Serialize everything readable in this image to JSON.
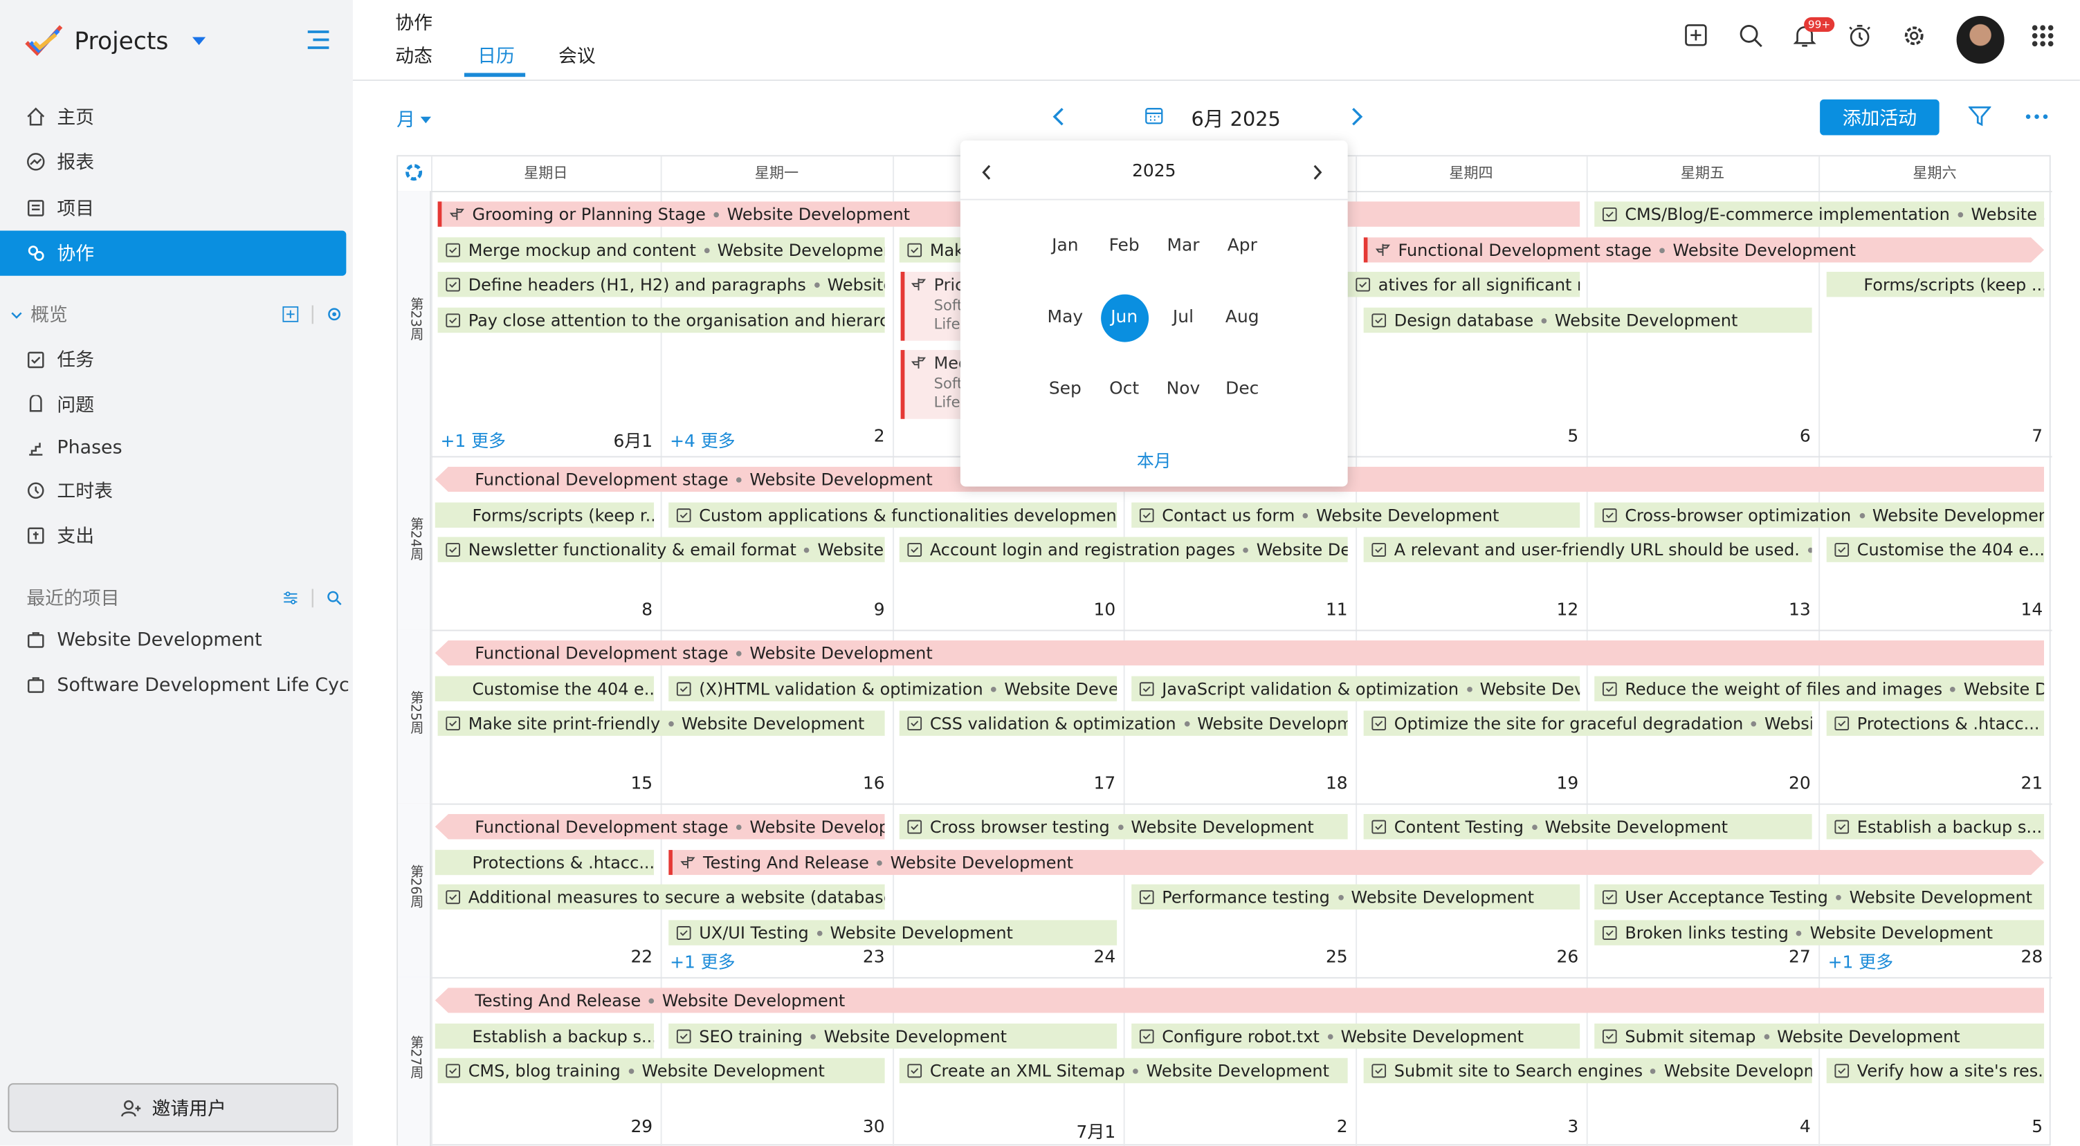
{
  "app": {
    "name": "Projects"
  },
  "sidebar": {
    "nav": [
      {
        "label": "主页",
        "icon": "home-icon"
      },
      {
        "label": "报表",
        "icon": "report-icon"
      },
      {
        "label": "项目",
        "icon": "project-icon"
      },
      {
        "label": "协作",
        "icon": "collab-icon"
      }
    ],
    "overview": {
      "title": "概览",
      "items": [
        "任务",
        "问题",
        "Phases",
        "工时表",
        "支出"
      ]
    },
    "recent": {
      "title": "最近的项目",
      "items": [
        "Website Development",
        "Software Development Life Cyc"
      ]
    },
    "invite": "邀请用户"
  },
  "header": {
    "title": "协作",
    "tabs": [
      "动态",
      "日历",
      "会议"
    ],
    "notif_badge": "99+"
  },
  "toolbar": {
    "view": "月",
    "month": "6月 2025",
    "add": "添加活动"
  },
  "popup": {
    "year": "2025",
    "months": [
      "Jan",
      "Feb",
      "Mar",
      "Apr",
      "May",
      "Jun",
      "Jul",
      "Aug",
      "Sep",
      "Oct",
      "Nov",
      "Dec"
    ],
    "selected": "Jun",
    "this_month": "本月"
  },
  "calendar": {
    "dow": [
      "星期日",
      "星期一",
      "星期二",
      "星期三",
      "星期四",
      "星期五",
      "星期六"
    ],
    "weeks": [
      "第23周",
      "第24周",
      "第25周",
      "第26周",
      "第27周"
    ],
    "days": [
      [
        "6月1",
        "2",
        "3",
        "4",
        "5",
        "6",
        "7"
      ],
      [
        "8",
        "9",
        "10",
        "11",
        "12",
        "13",
        "14"
      ],
      [
        "15",
        "16",
        "17",
        "18",
        "19",
        "20",
        "21"
      ],
      [
        "22",
        "23",
        "24",
        "25",
        "26",
        "27",
        "28"
      ],
      [
        "29",
        "30",
        "7月1",
        "2",
        "3",
        "4",
        "5"
      ]
    ],
    "more": [
      "+1 更多",
      "+4 更多",
      "+1 更多",
      "+1 更多"
    ],
    "project": "Website Development",
    "events": [
      {
        "t": "Grooming or Planning Stage",
        "p": "Website Development"
      },
      {
        "t": "Merge mockup and content",
        "p": "Website Development"
      },
      {
        "t": "Define headers (H1, H2) and paragraphs",
        "p": "Website D..."
      },
      {
        "t": "Pay close attention to the organisation and hierarchy ...",
        "p": ""
      },
      {
        "t": "Mak",
        "p": ""
      },
      {
        "t": "Pric",
        "p": ""
      },
      {
        "t": "Med",
        "p": ""
      },
      {
        "t": "CMS/Blog/E-commerce implementation",
        "p": "Website ..."
      },
      {
        "t": "Functional Development stage",
        "p": "Website Development"
      },
      {
        "t": "atives for all significant med...",
        "p": ""
      },
      {
        "t": "Forms/scripts (keep ...",
        "p": ""
      },
      {
        "t": "Design database",
        "p": "Website Development"
      },
      {
        "t": "Functional Development stage",
        "p": "Website Development"
      },
      {
        "t": "Forms/scripts (keep r...",
        "p": ""
      },
      {
        "t": "Custom applications & functionalities development...",
        "p": ""
      },
      {
        "t": "Contact us form",
        "p": "Website Development"
      },
      {
        "t": "Cross-browser optimization",
        "p": "Website Development"
      },
      {
        "t": "Newsletter functionality & email format",
        "p": "Website D..."
      },
      {
        "t": "Account login and registration pages",
        "p": "Website Dev..."
      },
      {
        "t": "A relevant and user-friendly URL should be used.",
        "p": "..."
      },
      {
        "t": "Customise the 404 e...",
        "p": ""
      },
      {
        "t": "Functional Development stage",
        "p": "Website Development"
      },
      {
        "t": "Customise the 404 e...",
        "p": ""
      },
      {
        "t": "(X)HTML validation & optimization",
        "p": "Website Develo..."
      },
      {
        "t": "JavaScript validation & optimization",
        "p": "Website Deve..."
      },
      {
        "t": "Reduce the weight of files and images",
        "p": "Website De..."
      },
      {
        "t": "Make site print-friendly",
        "p": "Website Development"
      },
      {
        "t": "CSS validation & optimization",
        "p": "Website Developme..."
      },
      {
        "t": "Optimize the site for graceful degradation",
        "p": "Website..."
      },
      {
        "t": "Protections & .htacc...",
        "p": ""
      },
      {
        "t": "Functional Development stage",
        "p": "Website Develop..."
      },
      {
        "t": "Cross browser testing",
        "p": "Website Development"
      },
      {
        "t": "Content Testing",
        "p": "Website Development"
      },
      {
        "t": "Establish a backup s...",
        "p": ""
      },
      {
        "t": "Protections & .htacc...",
        "p": ""
      },
      {
        "t": "Testing And Release",
        "p": "Website Development"
      },
      {
        "t": "Additional measures to secure a website (database, c...",
        "p": ""
      },
      {
        "t": "Performance testing",
        "p": "Website Development"
      },
      {
        "t": "User Acceptance Testing",
        "p": "Website Development"
      },
      {
        "t": "UX/UI Testing",
        "p": "Website Development"
      },
      {
        "t": "Broken links testing",
        "p": "Website Development"
      },
      {
        "t": "Testing And Release",
        "p": "Website Development"
      },
      {
        "t": "Establish a backup s...",
        "p": ""
      },
      {
        "t": "SEO training",
        "p": "Website Development"
      },
      {
        "t": "Configure robot.txt",
        "p": "Website Development"
      },
      {
        "t": "Submit sitemap",
        "p": "Website Development"
      },
      {
        "t": "CMS, blog training",
        "p": "Website Development"
      },
      {
        "t": "Create an XML Sitemap",
        "p": "Website Development"
      },
      {
        "t": "Submit site to Search engines",
        "p": "Website Development"
      },
      {
        "t": "Verify how a site's res...",
        "p": ""
      }
    ],
    "sub": [
      "Soft",
      "Life",
      "Soft",
      "Life"
    ]
  }
}
